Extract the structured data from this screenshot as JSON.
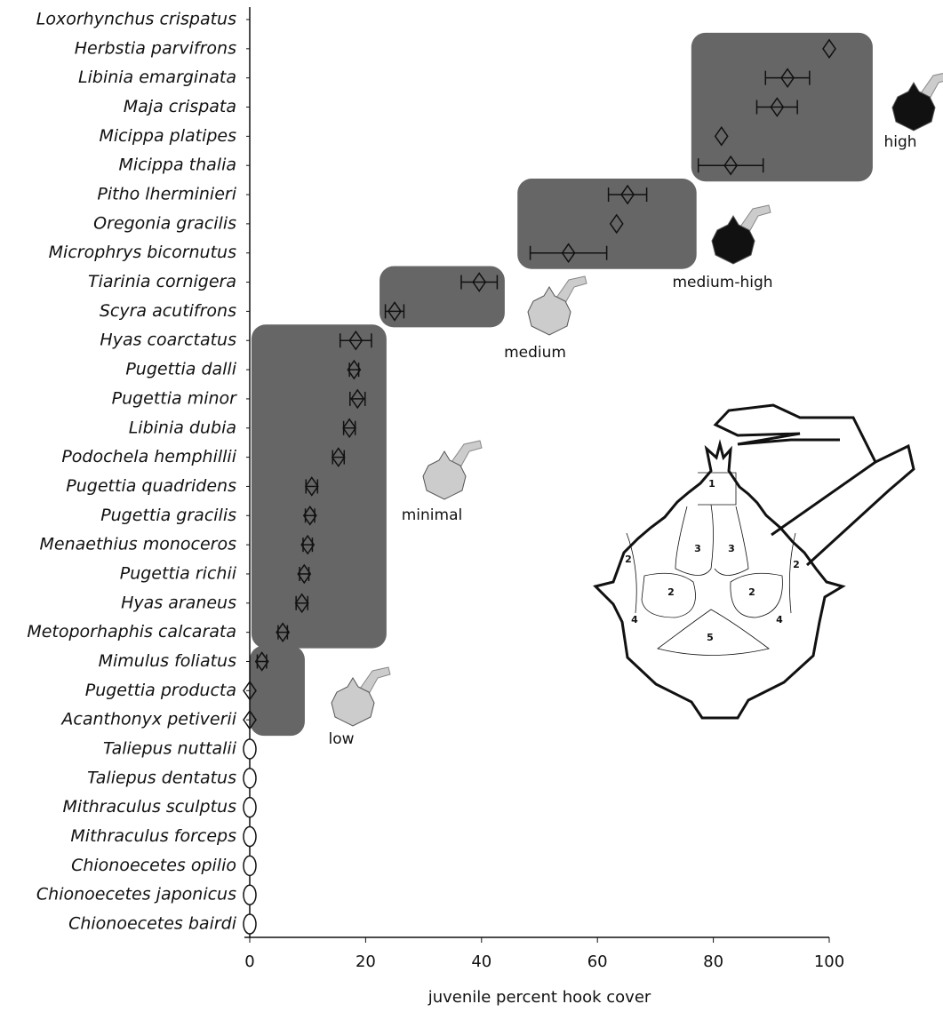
{
  "chart_data": {
    "type": "dotplot",
    "xlabel": "juvenile percent hook cover",
    "categories": [
      "Loxorhynchus crispatus",
      "Herbstia parvifrons",
      "Libinia emarginata",
      "Maja crispata",
      "Micippa platipes",
      "Micippa thalia",
      "Pitho lherminieri",
      "Oregonia gracilis",
      "Microphrys bicornutus",
      "Tiarinia cornigera",
      "Scyra acutifrons",
      "Hyas coarctatus",
      "Pugettia dalli",
      "Pugettia minor",
      "Libinia dubia",
      "Podochela hemphillii",
      "Pugettia quadridens",
      "Pugettia gracilis",
      "Menaethius monoceros",
      "Pugettia richii",
      "Hyas araneus",
      "Metoporhaphis calcarata",
      "Mimulus foliatus",
      "Pugettia producta",
      "Acanthonyx petiverii",
      "Taliepus nuttalii",
      "Taliepus dentatus",
      "Mithraculus sculptus",
      "Mithraculus forceps",
      "Chionoecetes opilio",
      "Chionoecetes japonicus",
      "Chionoecetes bairdi"
    ],
    "values": [
      null,
      100,
      92.8,
      91,
      81.4,
      83,
      65.2,
      63.3,
      55,
      39.6,
      25,
      18.3,
      18,
      18.6,
      17.2,
      15.3,
      10.7,
      10.4,
      10,
      9.4,
      9,
      5.7,
      2.1,
      0,
      0,
      0,
      0,
      0,
      0,
      0,
      0,
      0
    ],
    "errors": [
      null,
      null,
      3.8,
      3.5,
      null,
      5.6,
      3.3,
      null,
      6.6,
      3.1,
      1.6,
      2.7,
      0.8,
      1.3,
      1,
      1,
      1,
      0.8,
      0.8,
      0.8,
      1,
      0.8,
      0.8,
      null,
      null,
      null,
      null,
      null,
      null,
      null,
      null,
      null
    ],
    "markers": [
      null,
      "diamond",
      "diamond",
      "diamond",
      "diamond",
      "diamond",
      "diamond",
      "diamond",
      "diamond",
      "diamond",
      "diamond",
      "diamond",
      "diamond",
      "diamond",
      "diamond",
      "diamond",
      "diamond",
      "diamond",
      "diamond",
      "diamond",
      "diamond",
      "diamond",
      "diamond",
      "diamond",
      "diamond",
      "ellipse",
      "ellipse",
      "ellipse",
      "ellipse",
      "ellipse",
      "ellipse",
      "ellipse"
    ],
    "xlim": [
      0,
      100
    ],
    "xticks": [
      0,
      20,
      40,
      60,
      80,
      100
    ],
    "regions": [
      {
        "label": "high",
        "x": [
          76.2,
          107.5
        ],
        "first": "Herbstia parvifrons",
        "last": "Micippa thalia"
      },
      {
        "label": "medium-high",
        "x": [
          46.2,
          77.1
        ],
        "first": "Pitho lherminieri",
        "last": "Microphrys bicornutus"
      },
      {
        "label": "medium",
        "x": [
          22.4,
          44
        ],
        "first": "Tiarinia cornigera",
        "last": "Scyra acutifrons"
      },
      {
        "label": "minimal",
        "x": [
          0.3,
          23.6
        ],
        "first": "Hyas coarctatus",
        "last": "Metoporhaphis calcarata"
      },
      {
        "label": "low",
        "x": [
          0,
          9.5
        ],
        "first": "Mimulus foliatus",
        "last": "Acanthonyx petiverii"
      }
    ],
    "region_color": "#666666",
    "diagram_labels": [
      "1",
      "2",
      "3",
      "3",
      "2",
      "2",
      "2",
      "4",
      "5",
      "4"
    ]
  }
}
